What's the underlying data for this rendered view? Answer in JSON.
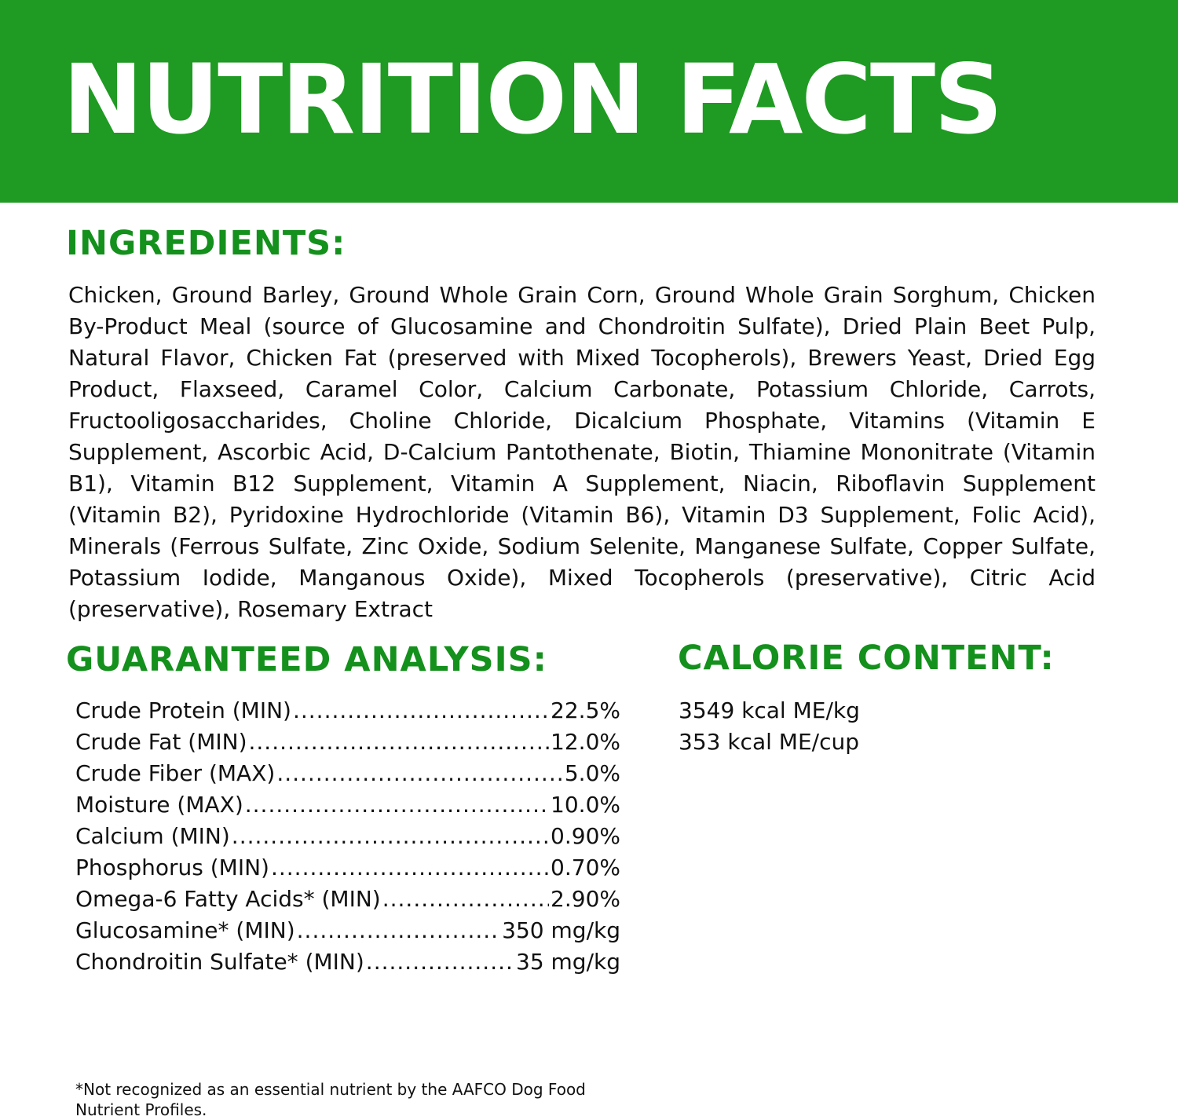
{
  "title": "NUTRITION FACTS",
  "colors": {
    "banner": "#1f9a22",
    "heading": "#14901c",
    "text": "#111111"
  },
  "ingredients": {
    "heading": "INGREDIENTS:",
    "text": "Chicken, Ground Barley, Ground Whole Grain Corn, Ground Whole Grain Sorghum, Chicken By-Product Meal (source of Glucosamine and Chondroitin Sulfate), Dried Plain Beet Pulp, Natural Flavor, Chicken Fat (preserved with Mixed Tocopherols), Brewers Yeast, Dried Egg Product, Flaxseed, Caramel Color, Calcium Carbonate, Potassium Chloride, Carrots, Fructooligosaccharides, Choline Chloride, Dicalcium Phosphate, Vitamins (Vitamin E Supplement, Ascorbic Acid, D-Calcium Pantothenate, Biotin, Thiamine Mononitrate (Vitamin B1), Vitamin B12 Supplement, Vitamin A Supplement, Niacin, Riboflavin Supplement (Vitamin B2), Pyridoxine Hydrochloride (Vitamin B6), Vitamin D3 Supplement, Folic Acid), Minerals (Ferrous Sulfate, Zinc Oxide, Sodium Selenite, Manganese Sulfate, Copper Sulfate, Potassium Iodide, Manganous Oxide), Mixed Tocopherols (preservative), Citric Acid (preservative), Rosemary Extract"
  },
  "analysis": {
    "heading": "GUARANTEED ANALYSIS:",
    "rows": [
      {
        "label": "Crude Protein (MIN)",
        "value": "22.5%"
      },
      {
        "label": "Crude Fat (MIN)",
        "value": "12.0%"
      },
      {
        "label": "Crude Fiber (MAX)",
        "value": "5.0%"
      },
      {
        "label": "Moisture (MAX)",
        "value": "10.0%"
      },
      {
        "label": "Calcium (MIN)",
        "value": "0.90%"
      },
      {
        "label": "Phosphorus (MIN)",
        "value": "0.70%"
      },
      {
        "label": "Omega-6 Fatty Acids* (MIN)",
        "value": "2.90%"
      },
      {
        "label": "Glucosamine* (MIN)",
        "value": "350 mg/kg"
      },
      {
        "label": "Chondroitin Sulfate* (MIN)",
        "value": "35 mg/kg"
      }
    ]
  },
  "calorie": {
    "heading": "CALORIE CONTENT:",
    "lines": [
      "3549 kcal ME/kg",
      "353 kcal ME/cup"
    ]
  },
  "footnote": "*Not recognized as an essential nutrient by the AAFCO Dog Food Nutrient Profiles."
}
